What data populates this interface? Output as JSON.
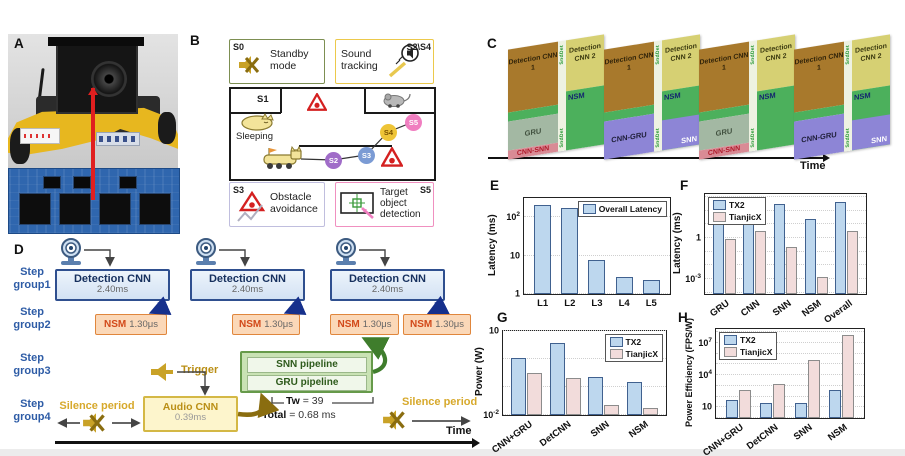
{
  "panels": {
    "A": {
      "label": "A"
    },
    "B": {
      "label": "B",
      "s0": "S0",
      "standby": "Standby mode",
      "sound": "Sound tracking",
      "s2s4": "S2\\S4",
      "s1": "S1",
      "sleeping": "Sleeping",
      "s2": "S2",
      "s3": "S3",
      "s4": "S4",
      "s5": "S5",
      "s3b": "S3",
      "obstacle": "Obstacle avoidance",
      "target": "Target object detection",
      "s5b": "S5"
    },
    "C": {
      "label": "C",
      "time": "Time",
      "det1": "Detection CNN 1",
      "det2": "Detection CNN 2",
      "nsm": "NSM",
      "gru": "GRU",
      "cnnsnn": "CNN-SNN",
      "cnngru": "CNN-GRU",
      "snn": "SNN",
      "strip": "SndDet"
    },
    "D": {
      "label": "D",
      "steps": [
        "Step group1",
        "Step group2",
        "Step group3",
        "Step group4"
      ],
      "cnn_title": "Detection CNN",
      "cnn_time": "2.40ms",
      "nsm_title": "NSM",
      "nsm_time": "1.30μs",
      "snn_pipe": "SNN pipeline",
      "gru_pipe": "GRU pipeline",
      "audio_title": "Audio CNN",
      "audio_time": "0.39ms",
      "trigger": "Trigger",
      "silence_left": "Silence period",
      "silence_right": "Silence period",
      "tw_label": "Tw",
      "tw_value": "= 39",
      "total_label": "Total",
      "total_value": "= 0.68 ms",
      "time": "Time"
    }
  },
  "chart_data": [
    {
      "id": "E",
      "panel_label": "E",
      "type": "bar",
      "yscale": "log",
      "grid": true,
      "ylabel": "Latency (ms)",
      "categories": [
        "L1",
        "L2",
        "L3",
        "L4",
        "L5"
      ],
      "series": [
        {
          "name": "Overall Latency",
          "color": "#bdd7ee",
          "border": "#40618f",
          "values": [
            210,
            180,
            7.5,
            2.8,
            2.3
          ]
        }
      ],
      "ylim": [
        1,
        320
      ],
      "yticks": [
        1,
        10,
        100
      ],
      "legend_pos": "top-right",
      "rotate_xlabels": false
    },
    {
      "id": "F",
      "panel_label": "F",
      "type": "bar",
      "yscale": "log",
      "grid": true,
      "ylabel": "Latency (ms)",
      "categories": [
        "GRU",
        "CNN",
        "SNN",
        "NSM",
        "Overall"
      ],
      "series": [
        {
          "name": "TX2",
          "color": "#bdd7ee",
          "border": "#40618f",
          "values": [
            12,
            25,
            320,
            25,
            400
          ]
        },
        {
          "name": "TianjicX",
          "color": "#f2dcdb",
          "border": "#8c8c8c",
          "values": [
            0.9,
            3,
            0.2,
            0.0013,
            3.2
          ]
        }
      ],
      "ylim": [
        8e-05,
        1600
      ],
      "yticks": [
        1,
        0.001
      ],
      "legend_pos": "top-left",
      "rotate_xlabels": true
    },
    {
      "id": "G",
      "panel_label": "G",
      "type": "bar",
      "yscale": "log",
      "grid": true,
      "ylabel": "Power (W)",
      "categories": [
        "CNN+GRU",
        "DetCNN",
        "SNN",
        "NSM"
      ],
      "series": [
        {
          "name": "TX2",
          "color": "#bdd7ee",
          "border": "#40618f",
          "values": [
            1.1,
            3.8,
            0.23,
            0.15
          ]
        },
        {
          "name": "TianjicX",
          "color": "#f2dcdb",
          "border": "#8c8c8c",
          "values": [
            0.32,
            0.21,
            0.022,
            0.018
          ]
        }
      ],
      "ylim": [
        0.01,
        10
      ],
      "yticks": [
        10,
        0.01
      ],
      "legend_pos": "top-right",
      "rotate_xlabels": true
    },
    {
      "id": "H",
      "panel_label": "H",
      "type": "bar",
      "yscale": "log",
      "grid": true,
      "ylabel": "Power Efficiency (FPS/W)",
      "categories": [
        "CNN+GRU",
        "DetCNN",
        "SNN",
        "NSM"
      ],
      "series": [
        {
          "name": "TX2",
          "color": "#bdd7ee",
          "border": "#40618f",
          "values": [
            45,
            24,
            24,
            400
          ]
        },
        {
          "name": "TianjicX",
          "color": "#f2dcdb",
          "border": "#8c8c8c",
          "values": [
            400,
            1600,
            270000,
            58000000
          ]
        }
      ],
      "ylim": [
        1,
        200000000
      ],
      "yticks": [
        10,
        10000,
        10000000
      ],
      "legend_pos": "top-left",
      "rotate_xlabels": true
    }
  ]
}
